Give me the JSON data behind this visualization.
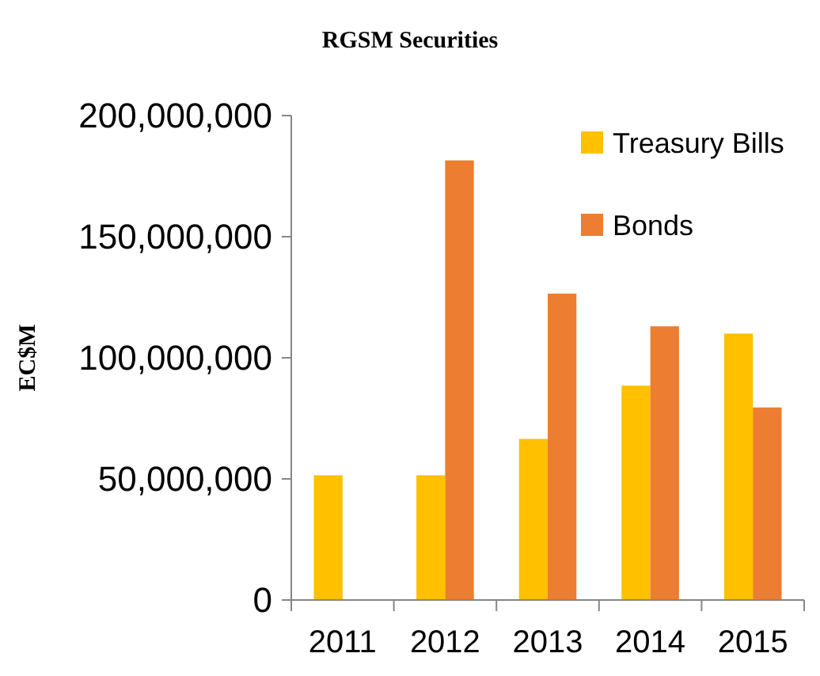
{
  "chart_data": {
    "type": "bar",
    "title": "RGSM Securities",
    "ylabel": "EC$M",
    "categories": [
      "2011",
      "2012",
      "2013",
      "2014",
      "2015"
    ],
    "series": [
      {
        "name": "Treasury Bills",
        "color": "#ffc000",
        "values": [
          51500000,
          51500000,
          66500000,
          88500000,
          110000000
        ]
      },
      {
        "name": "Bonds",
        "color": "#ed7d31",
        "values": [
          null,
          181500000,
          126500000,
          113000000,
          79500000
        ]
      }
    ],
    "ylim": [
      0,
      200000000
    ],
    "yticks": [
      {
        "value": 0,
        "label": "0"
      },
      {
        "value": 50000000,
        "label": "50,000,000"
      },
      {
        "value": 100000000,
        "label": "100,000,000"
      },
      {
        "value": 150000000,
        "label": "150,000,000"
      },
      {
        "value": 200000000,
        "label": "200,000,000"
      }
    ],
    "legend": "top right",
    "grid": false
  }
}
